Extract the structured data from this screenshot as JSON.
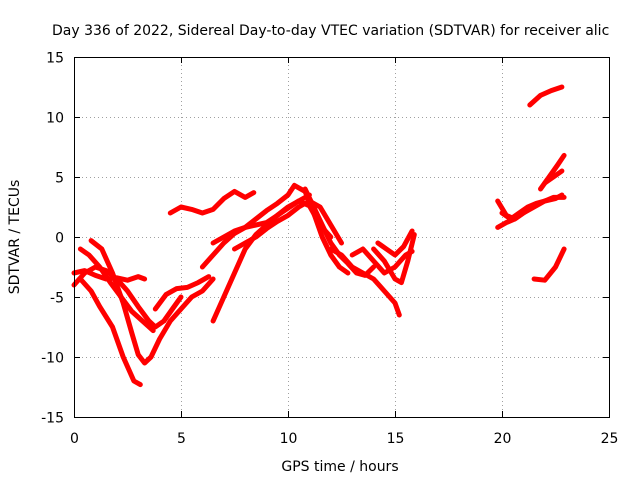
{
  "chart_data": {
    "type": "scatter",
    "title": "Day 336 of 2022, Sidereal Day-to-day VTEC variation (SDTVAR) for receiver alic",
    "xlabel": "GPS time / hours",
    "ylabel": "SDTVAR / TECUs",
    "xlim": [
      0,
      25
    ],
    "ylim": [
      -15,
      15
    ],
    "xticks": [
      "0",
      "5",
      "10",
      "15",
      "20",
      "25"
    ],
    "yticks": [
      "-15",
      "-10",
      "-5",
      "0",
      "5",
      "10",
      "15"
    ],
    "grid": true,
    "marker": "plus",
    "color": "#ff0000",
    "series": [
      {
        "x": [
          0.0,
          0.5,
          1.0,
          1.5,
          2.0,
          2.5,
          3.0,
          3.3
        ],
        "y": [
          -3.0,
          -2.8,
          -3.2,
          -3.5,
          -3.4,
          -3.6,
          -3.3,
          -3.5
        ]
      },
      {
        "x": [
          0.0,
          0.5,
          1.0,
          1.5,
          2.0,
          2.5,
          3.0,
          3.5,
          3.8,
          4.2,
          4.6,
          5.0
        ],
        "y": [
          -4.0,
          -3.0,
          -2.5,
          -2.8,
          -3.5,
          -4.5,
          -5.8,
          -7.0,
          -7.5,
          -7.0,
          -6.0,
          -5.0
        ]
      },
      {
        "x": [
          0.3,
          0.8,
          1.2,
          1.8,
          2.3,
          2.8,
          3.1
        ],
        "y": [
          -3.5,
          -4.5,
          -5.8,
          -7.5,
          -10.0,
          -12.0,
          -12.3
        ]
      },
      {
        "x": [
          0.8,
          1.3,
          1.8,
          2.3,
          2.7,
          3.0,
          3.3,
          3.6,
          4.0,
          4.5,
          5.0,
          5.5,
          6.0,
          6.5
        ],
        "y": [
          -0.3,
          -1.0,
          -3.0,
          -5.5,
          -8.0,
          -9.8,
          -10.5,
          -10.0,
          -8.5,
          -7.0,
          -6.0,
          -5.0,
          -4.5,
          -3.5
        ]
      },
      {
        "x": [
          0.3,
          0.7,
          1.2,
          1.7,
          2.2,
          2.7,
          3.2,
          3.7
        ],
        "y": [
          -1.0,
          -1.5,
          -2.5,
          -3.8,
          -5.0,
          -6.2,
          -7.0,
          -7.8
        ]
      },
      {
        "x": [
          3.8,
          4.3,
          4.8,
          5.3,
          5.8,
          6.3
        ],
        "y": [
          -6.0,
          -4.8,
          -4.3,
          -4.2,
          -3.8,
          -3.3
        ]
      },
      {
        "x": [
          4.5,
          5.0,
          5.5,
          6.0,
          6.5,
          7.0,
          7.5,
          8.0,
          8.4
        ],
        "y": [
          2.0,
          2.5,
          2.3,
          2.0,
          2.3,
          3.2,
          3.8,
          3.3,
          3.7
        ]
      },
      {
        "x": [
          6.0,
          6.5,
          7.0,
          7.5,
          8.0,
          8.5,
          9.0,
          9.5,
          10.0,
          10.5,
          11.0
        ],
        "y": [
          -2.5,
          -1.5,
          -0.5,
          0.3,
          0.8,
          1.0,
          1.2,
          1.8,
          2.5,
          3.0,
          3.5
        ]
      },
      {
        "x": [
          6.5,
          7.0,
          7.5,
          8.0,
          8.5,
          9.0,
          9.5,
          10.0,
          10.5,
          11.0,
          11.5,
          12.0
        ],
        "y": [
          -7.0,
          -5.0,
          -3.0,
          -1.0,
          0.2,
          1.0,
          1.8,
          2.4,
          3.0,
          2.6,
          1.0,
          0.0
        ]
      },
      {
        "x": [
          6.5,
          7.0,
          7.5,
          8.0,
          8.5,
          9.0,
          9.5,
          10.0,
          10.3,
          10.8,
          11.2,
          11.6,
          12.0,
          12.4,
          12.8
        ],
        "y": [
          -0.5,
          0.0,
          0.5,
          0.8,
          1.5,
          2.2,
          2.8,
          3.5,
          4.3,
          3.8,
          2.0,
          0.0,
          -1.5,
          -2.5,
          -3.0
        ]
      },
      {
        "x": [
          7.5,
          8.0,
          8.5,
          9.0,
          9.5,
          10.0,
          10.5,
          11.0,
          11.5,
          12.0,
          12.5
        ],
        "y": [
          -1.0,
          -0.5,
          0.0,
          0.7,
          1.3,
          1.8,
          2.5,
          3.0,
          2.5,
          1.0,
          -0.5
        ]
      },
      {
        "x": [
          10.8,
          11.2,
          11.6,
          12.0,
          12.4,
          12.8,
          13.2,
          13.6,
          14.0
        ],
        "y": [
          4.0,
          2.5,
          1.0,
          -0.5,
          -1.5,
          -2.2,
          -3.0,
          -3.2,
          -2.5
        ]
      },
      {
        "x": [
          12.0,
          12.5,
          13.0,
          13.5,
          14.0,
          14.5,
          15.0,
          15.2
        ],
        "y": [
          -1.0,
          -1.5,
          -2.5,
          -3.0,
          -3.5,
          -4.5,
          -5.5,
          -6.5
        ]
      },
      {
        "x": [
          13.0,
          13.5,
          14.0,
          14.5,
          15.0,
          15.5,
          15.8
        ],
        "y": [
          -1.5,
          -1.0,
          -2.0,
          -3.0,
          -2.5,
          -1.5,
          -1.2
        ]
      },
      {
        "x": [
          14.0,
          14.5,
          15.0,
          15.3,
          15.6,
          15.9
        ],
        "y": [
          -1.0,
          -2.0,
          -3.5,
          -3.8,
          -2.0,
          0.2
        ]
      },
      {
        "x": [
          14.2,
          14.6,
          15.0,
          15.4,
          15.8
        ],
        "y": [
          -0.5,
          -1.0,
          -1.5,
          -0.8,
          0.5
        ]
      },
      {
        "x": [
          19.8,
          20.2,
          20.6,
          21.0,
          21.5,
          22.0,
          22.5,
          22.8
        ],
        "y": [
          3.0,
          1.8,
          1.5,
          2.0,
          2.5,
          3.0,
          3.2,
          3.5
        ]
      },
      {
        "x": [
          19.8,
          20.2,
          20.6,
          21.0,
          21.4
        ],
        "y": [
          0.8,
          1.2,
          1.5,
          2.0,
          2.5
        ]
      },
      {
        "x": [
          20.0,
          20.4,
          20.8,
          21.2,
          21.6,
          22.0,
          22.4,
          22.9
        ],
        "y": [
          2.0,
          1.5,
          2.0,
          2.5,
          2.8,
          3.0,
          3.3,
          3.3
        ]
      },
      {
        "x": [
          21.3,
          21.8,
          22.3,
          22.8
        ],
        "y": [
          11.0,
          11.8,
          12.2,
          12.5
        ]
      },
      {
        "x": [
          21.8,
          22.2,
          22.6,
          22.9
        ],
        "y": [
          4.0,
          5.0,
          6.0,
          6.8
        ]
      },
      {
        "x": [
          22.0,
          22.4,
          22.8
        ],
        "y": [
          4.5,
          5.0,
          5.5
        ]
      },
      {
        "x": [
          21.5,
          22.0,
          22.5,
          22.9
        ],
        "y": [
          -3.5,
          -3.6,
          -2.5,
          -1.0
        ]
      }
    ]
  }
}
